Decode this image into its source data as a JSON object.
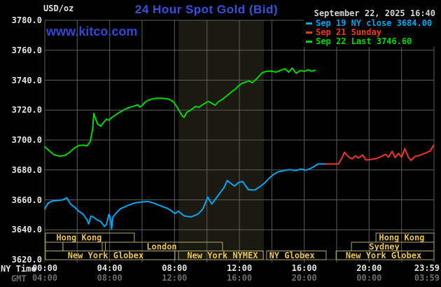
{
  "header": {
    "units_label": "USD/oz",
    "title": "24 Hour Spot Gold (Bid)",
    "watermark": "www.kitco.com",
    "datetime": "September 22, 2025 16:40"
  },
  "legend": {
    "entries": [
      {
        "label": "Sep 19 NY close 3684.00",
        "color": "#00a6f0"
      },
      {
        "label": "Sep 21 Sunday",
        "color": "#f23524"
      },
      {
        "label": "Sep 22 Last 3746.60",
        "color": "#00d800"
      }
    ]
  },
  "axes": {
    "y": {
      "ticks": [
        {
          "v": 3780,
          "label": "3780.0"
        },
        {
          "v": 3760,
          "label": "3760.0"
        },
        {
          "v": 3740,
          "label": "3740.0"
        },
        {
          "v": 3720,
          "label": "3720.0"
        },
        {
          "v": 3700,
          "label": "3700.0"
        },
        {
          "v": 3680,
          "label": "3680.0"
        },
        {
          "v": 3660,
          "label": "3660.0"
        },
        {
          "v": 3640,
          "label": "3640.0"
        },
        {
          "v": 3620,
          "label": "3620.0"
        }
      ]
    },
    "x": {
      "ny_caption": "NY Time",
      "gmt_caption": "GMT",
      "ny_ticks": [
        {
          "t": 0,
          "label": "00:00"
        },
        {
          "t": 4,
          "label": "04:00"
        },
        {
          "t": 8,
          "label": "08:00"
        },
        {
          "t": 12,
          "label": "12:00"
        },
        {
          "t": 16,
          "label": "16:00"
        },
        {
          "t": 20,
          "label": "20:00"
        },
        {
          "t": 23.98,
          "label": "23:59"
        }
      ],
      "gmt_ticks": [
        {
          "t": 0,
          "label": "04:00"
        },
        {
          "t": 4,
          "label": "08:00"
        },
        {
          "t": 8,
          "label": "12:00"
        },
        {
          "t": 12,
          "label": "16:00"
        },
        {
          "t": 16,
          "label": "20:00"
        },
        {
          "t": 20,
          "label": "00:00"
        },
        {
          "t": 23.98,
          "label": "03:59"
        }
      ]
    }
  },
  "sessions": {
    "rows": [
      {
        "row": 0,
        "t1": 0.04,
        "t2": 5.52,
        "label": "Hong Kong",
        "label_t": 2.11
      },
      {
        "row": 0,
        "t1": 20.42,
        "t2": 24.0,
        "label": "Hong Kong",
        "label_t": 22.01
      },
      {
        "row": 1,
        "t1": 0.04,
        "t2": 1.12,
        "label": "",
        "label_t": 0.6
      },
      {
        "row": 1,
        "t1": 1.12,
        "t2": 3.54,
        "label": "",
        "label_t": 2.3
      },
      {
        "row": 1,
        "t1": 3.74,
        "t2": 10.96,
        "label": "London",
        "label_t": 7.21
      },
      {
        "row": 1,
        "t1": 18.91,
        "t2": 24.0,
        "label": "Sydney",
        "label_t": 20.94
      },
      {
        "row": 2,
        "t1": 0.04,
        "t2": 8.03,
        "label": "New York Globex",
        "label_t": 3.75
      },
      {
        "row": 2,
        "t1": 8.24,
        "t2": 13.47,
        "label": "New York NYMEX",
        "label_t": 10.96
      },
      {
        "row": 2,
        "t1": 13.68,
        "t2": 17.35,
        "label": "NY Globex",
        "label_t": 15.24
      },
      {
        "row": 2,
        "t1": 17.96,
        "t2": 24.0,
        "label": "New York Globex",
        "label_t": 20.89
      }
    ]
  },
  "chart_data": {
    "type": "line",
    "title": "24 Hour Spot Gold (Bid)",
    "x_unit": "NY time (hours)",
    "x_range": [
      0,
      24
    ],
    "y_range": [
      3620,
      3780
    ],
    "grid": {
      "x_step_hours": 2,
      "y_step": 20,
      "grid_on": true
    },
    "ny_close_value": 3684.0,
    "last_value": 3746.6,
    "band": {
      "t1": 8.24,
      "t2": 13.51,
      "note": "New York NYMEX session shading"
    },
    "series": [
      {
        "name": "Sep 19 NY close 3684.00",
        "color": "#00a6f0",
        "points": [
          [
            0,
            3654
          ],
          [
            0.2,
            3657.8
          ],
          [
            0.45,
            3659.2
          ],
          [
            0.8,
            3659.6
          ],
          [
            1.1,
            3660
          ],
          [
            1.35,
            3661.4
          ],
          [
            1.6,
            3657
          ],
          [
            1.85,
            3655
          ],
          [
            2.1,
            3652.3
          ],
          [
            2.35,
            3650.6
          ],
          [
            2.6,
            3646.8
          ],
          [
            2.7,
            3643.9
          ],
          [
            2.85,
            3649.2
          ],
          [
            3.05,
            3648
          ],
          [
            3.25,
            3646.4
          ],
          [
            3.45,
            3645.5
          ],
          [
            3.67,
            3642.3
          ],
          [
            3.8,
            3643.5
          ],
          [
            3.95,
            3650.2
          ],
          [
            4.05,
            3647.8
          ],
          [
            4.12,
            3640.6
          ],
          [
            4.2,
            3648.6
          ],
          [
            4.45,
            3651.8
          ],
          [
            4.66,
            3654
          ],
          [
            5.14,
            3656.4
          ],
          [
            5.57,
            3658
          ],
          [
            6.0,
            3658.6
          ],
          [
            6.39,
            3658.9
          ],
          [
            6.73,
            3657.8
          ],
          [
            7.03,
            3656.4
          ],
          [
            7.6,
            3654.1
          ],
          [
            8.03,
            3650.9
          ],
          [
            8.24,
            3652.4
          ],
          [
            8.59,
            3649.3
          ],
          [
            9.02,
            3648.6
          ],
          [
            9.45,
            3650.5
          ],
          [
            9.75,
            3654
          ],
          [
            10.05,
            3661.8
          ],
          [
            10.3,
            3657.2
          ],
          [
            10.55,
            3661
          ],
          [
            10.8,
            3664.6
          ],
          [
            11.05,
            3668.2
          ],
          [
            11.25,
            3672.9
          ],
          [
            11.5,
            3670.8
          ],
          [
            11.7,
            3669.2
          ],
          [
            11.95,
            3671.6
          ],
          [
            12.2,
            3672.3
          ],
          [
            12.55,
            3666.8
          ],
          [
            12.95,
            3666.6
          ],
          [
            13.25,
            3668.7
          ],
          [
            13.55,
            3671.2
          ],
          [
            13.85,
            3674.6
          ],
          [
            14.1,
            3677
          ],
          [
            14.4,
            3678.8
          ],
          [
            14.75,
            3679.6
          ],
          [
            15.1,
            3680.2
          ],
          [
            15.45,
            3679.6
          ],
          [
            15.8,
            3680.6
          ],
          [
            16.1,
            3679.8
          ],
          [
            16.35,
            3680.8
          ],
          [
            16.6,
            3682.2
          ],
          [
            16.85,
            3684
          ],
          [
            17.31,
            3684
          ]
        ]
      },
      {
        "name": "Sep 21 Sunday",
        "color": "#f23524",
        "points": [
          [
            17.31,
            3684
          ],
          [
            18.1,
            3684
          ],
          [
            18.3,
            3687.6
          ],
          [
            18.48,
            3691.8
          ],
          [
            18.7,
            3689
          ],
          [
            18.95,
            3687.4
          ],
          [
            19.15,
            3689.4
          ],
          [
            19.35,
            3688
          ],
          [
            19.6,
            3690
          ],
          [
            19.8,
            3686.6
          ],
          [
            20.1,
            3687
          ],
          [
            20.45,
            3687.6
          ],
          [
            20.75,
            3689
          ],
          [
            21.0,
            3690.4
          ],
          [
            21.2,
            3688.6
          ],
          [
            21.42,
            3692.4
          ],
          [
            21.6,
            3688.2
          ],
          [
            21.8,
            3691
          ],
          [
            22.0,
            3688.6
          ],
          [
            22.2,
            3694.2
          ],
          [
            22.42,
            3688.4
          ],
          [
            22.58,
            3686.4
          ],
          [
            22.85,
            3689.2
          ],
          [
            23.1,
            3689.6
          ],
          [
            23.45,
            3691.2
          ],
          [
            23.75,
            3692.6
          ],
          [
            23.98,
            3696.4
          ]
        ]
      },
      {
        "name": "Sep 22 Last 3746.60",
        "color": "#00d800",
        "points": [
          [
            0,
            3695.5
          ],
          [
            0.25,
            3693
          ],
          [
            0.55,
            3690.2
          ],
          [
            0.9,
            3689.2
          ],
          [
            1.2,
            3689.6
          ],
          [
            1.5,
            3691.5
          ],
          [
            1.8,
            3694.5
          ],
          [
            2.1,
            3696.3
          ],
          [
            2.4,
            3696.6
          ],
          [
            2.6,
            3696
          ],
          [
            2.8,
            3699
          ],
          [
            2.95,
            3707
          ],
          [
            3.02,
            3717.8
          ],
          [
            3.12,
            3714.5
          ],
          [
            3.25,
            3710.8
          ],
          [
            3.45,
            3709.2
          ],
          [
            3.65,
            3712
          ],
          [
            3.8,
            3714
          ],
          [
            3.95,
            3713.2
          ],
          [
            4.1,
            3714.8
          ],
          [
            4.3,
            3716.3
          ],
          [
            4.6,
            3718.5
          ],
          [
            4.9,
            3720.3
          ],
          [
            5.15,
            3721.5
          ],
          [
            5.4,
            3722.3
          ],
          [
            5.6,
            3723
          ],
          [
            5.73,
            3723.6
          ],
          [
            5.85,
            3722
          ],
          [
            6.0,
            3723
          ],
          [
            6.15,
            3725
          ],
          [
            6.35,
            3726.5
          ],
          [
            6.6,
            3727.4
          ],
          [
            6.9,
            3727.9
          ],
          [
            7.2,
            3728
          ],
          [
            7.5,
            3727.6
          ],
          [
            7.7,
            3727
          ],
          [
            7.95,
            3725.4
          ],
          [
            8.2,
            3721
          ],
          [
            8.45,
            3716.5
          ],
          [
            8.58,
            3715.1
          ],
          [
            8.75,
            3718.5
          ],
          [
            8.9,
            3719.4
          ],
          [
            9.1,
            3720.8
          ],
          [
            9.3,
            3722.5
          ],
          [
            9.5,
            3721.8
          ],
          [
            9.7,
            3723.3
          ],
          [
            9.9,
            3724.8
          ],
          [
            10.1,
            3725.8
          ],
          [
            10.3,
            3724.5
          ],
          [
            10.5,
            3723.2
          ],
          [
            10.7,
            3725.5
          ],
          [
            10.9,
            3726.8
          ],
          [
            11.1,
            3728.5
          ],
          [
            11.3,
            3730.2
          ],
          [
            11.55,
            3732.5
          ],
          [
            11.75,
            3734
          ],
          [
            11.95,
            3736.2
          ],
          [
            12.15,
            3737.8
          ],
          [
            12.4,
            3738.8
          ],
          [
            12.6,
            3739.4
          ],
          [
            12.8,
            3738.2
          ],
          [
            13.0,
            3740.3
          ],
          [
            13.2,
            3742.5
          ],
          [
            13.4,
            3744.9
          ],
          [
            13.65,
            3745.9
          ],
          [
            13.95,
            3746.1
          ],
          [
            14.25,
            3745.4
          ],
          [
            14.55,
            3746.6
          ],
          [
            14.8,
            3747.6
          ],
          [
            15.05,
            3745.3
          ],
          [
            15.25,
            3748.1
          ],
          [
            15.5,
            3744.6
          ],
          [
            15.75,
            3746.4
          ],
          [
            16.0,
            3745.9
          ],
          [
            16.25,
            3746.9
          ],
          [
            16.45,
            3746
          ],
          [
            16.67,
            3746.6
          ]
        ]
      }
    ]
  },
  "colors": {
    "background": "#000000",
    "grid": "#5e5e5e",
    "band": "#1a1a10",
    "session_border": "#b2aa66",
    "session_text": "#e9c455"
  }
}
